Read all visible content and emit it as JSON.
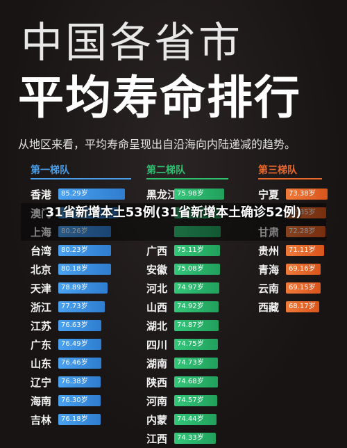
{
  "title_line1": "中国各省市",
  "title_line2": "平均寿命排行",
  "subtitle": "从地区来看，平均寿命呈现出自沿海向内陆递减的趋势。",
  "overlay_text": "31省新增本土53例(31省新增本土确诊52例)",
  "colors": {
    "tier1": "#3b8fe0",
    "tier2": "#27b364",
    "tier3": "#e45f25",
    "background": "#1c1818"
  },
  "chart_data": {
    "type": "bar",
    "title": "中国各省市平均寿命排行",
    "tiers": [
      {
        "name": "第一梯队",
        "provinces": [
          "香港",
          "澳门",
          "上海",
          "台湾",
          "北京",
          "天津",
          "浙江",
          "江苏",
          "广东",
          "山东",
          "辽宁",
          "海南",
          "吉林"
        ],
        "values": [
          85.29,
          83.0,
          80.26,
          80.23,
          80.18,
          78.89,
          77.73,
          76.63,
          76.49,
          76.46,
          76.38,
          76.3,
          76.18
        ],
        "labels": [
          "85.29岁",
          "",
          "80.26岁",
          "80.23岁",
          "80.18岁",
          "78.89岁",
          "77.73岁",
          "76.63岁",
          "76.49岁",
          "76.46岁",
          "76.38岁",
          "76.30岁",
          "76.18岁"
        ]
      },
      {
        "name": "第二梯队",
        "provinces": [
          "黑龙江",
          "",
          "",
          "广西",
          "安徽",
          "河北",
          "山西",
          "湖北",
          "四川",
          "湖南",
          "陕西",
          "河南",
          "内蒙",
          "江西"
        ],
        "values": [
          75.98,
          75.5,
          75.3,
          75.11,
          75.08,
          74.97,
          74.92,
          74.87,
          74.75,
          74.73,
          74.68,
          74.57,
          74.44,
          74.33
        ],
        "labels": [
          "75.98岁",
          "",
          "",
          "75.11岁",
          "75.08岁",
          "74.97岁",
          "74.92岁",
          "74.87岁",
          "74.75岁",
          "74.73岁",
          "74.68岁",
          "74.57岁",
          "74.44岁",
          "74.33岁"
        ]
      },
      {
        "name": "第三梯队",
        "provinces": [
          "宁夏",
          "",
          "甘肃",
          "贵州",
          "青海",
          "云南",
          "西藏"
        ],
        "values": [
          73.38,
          72.35,
          72.28,
          71.11,
          69.16,
          69.15,
          68.17
        ],
        "labels": [
          "73.38岁",
          "72.35岁",
          "72.28岁",
          "71.11岁",
          "69.16岁",
          "69.15岁",
          "68.17岁"
        ]
      }
    ]
  }
}
